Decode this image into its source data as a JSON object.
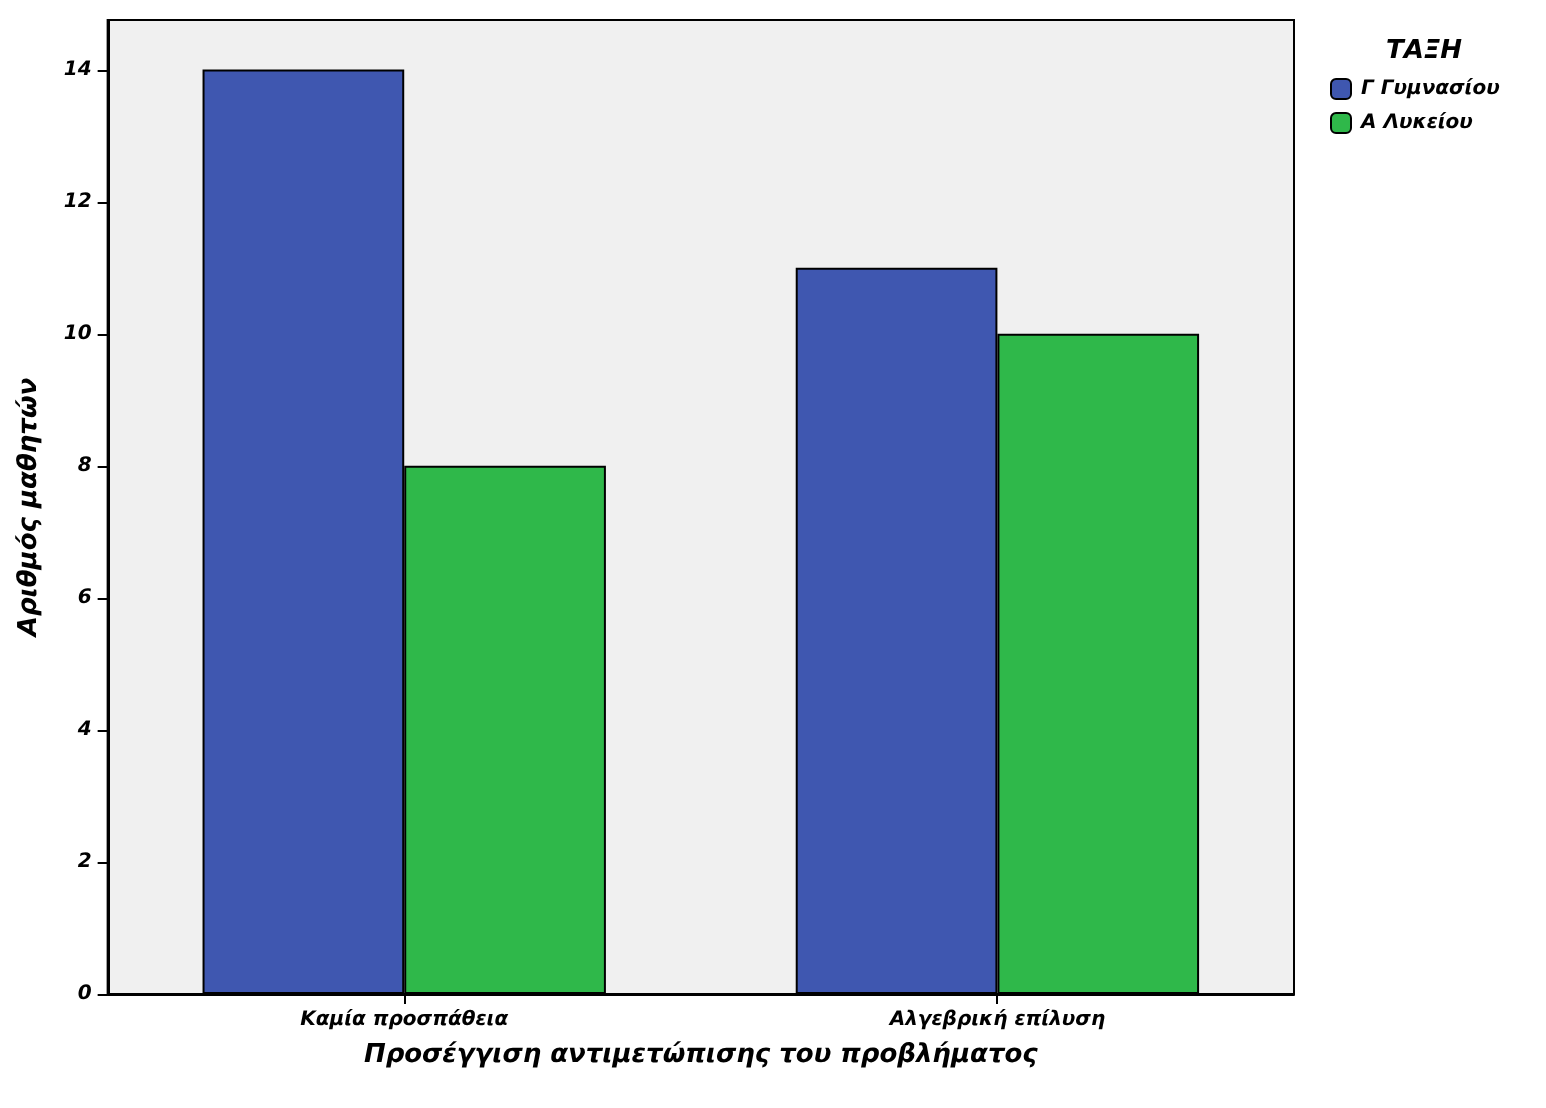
{
  "chart_data": {
    "type": "bar",
    "xlabel": "Προσέγγιση αντιμετώπισης του προβλήματος",
    "ylabel": "Αριθμός μαθητών",
    "legend_title": "ΤΑΞΗ",
    "categories": [
      "Καμία προσπάθεια",
      "Αλγεβρική επίλυση"
    ],
    "series": [
      {
        "name": "Γ Γυμνασίου",
        "color": "#3f57b0",
        "values": [
          14,
          11
        ]
      },
      {
        "name": "Α Λυκείου",
        "color": "#2fb84a",
        "values": [
          8,
          10
        ]
      }
    ],
    "ylim": [
      0,
      14.75
    ],
    "yticks": [
      0,
      2,
      4,
      6,
      8,
      10,
      12,
      14
    ],
    "grid": false,
    "legend": "top right"
  }
}
